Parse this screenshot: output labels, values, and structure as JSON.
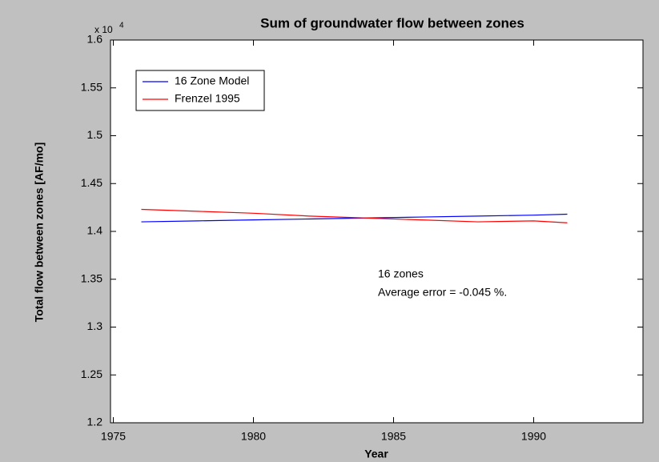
{
  "chart_data": {
    "type": "line",
    "title": "Sum of groundwater flow between zones",
    "x_label": "Year",
    "y_label": "Total flow between zones [AF/mo]",
    "y_scale_base": "x 10",
    "y_scale_exponent": "4",
    "annotations": [
      "16 zones",
      "Average error = -0.045 %."
    ],
    "x": [
      1976,
      1978,
      1980,
      1982,
      1984,
      1986,
      1988,
      1990,
      1991.2
    ],
    "series": [
      {
        "name": "16 Zone Model",
        "color": "#0000ff",
        "values": [
          1.41,
          1.411,
          1.412,
          1.413,
          1.414,
          1.415,
          1.416,
          1.417,
          1.418
        ]
      },
      {
        "name": "Frenzel 1995",
        "color": "#ff0000",
        "values": [
          1.423,
          1.421,
          1.419,
          1.416,
          1.414,
          1.412,
          1.41,
          1.411,
          1.409
        ]
      }
    ],
    "xlim": [
      1974.9,
      1993.9
    ],
    "xticks": [
      1975,
      1980,
      1985,
      1990
    ],
    "ylim": [
      1.2,
      1.6
    ],
    "yticks": [
      1.2,
      1.25,
      1.3,
      1.35,
      1.4,
      1.45,
      1.5,
      1.55,
      1.6
    ],
    "legend": "upper left"
  }
}
